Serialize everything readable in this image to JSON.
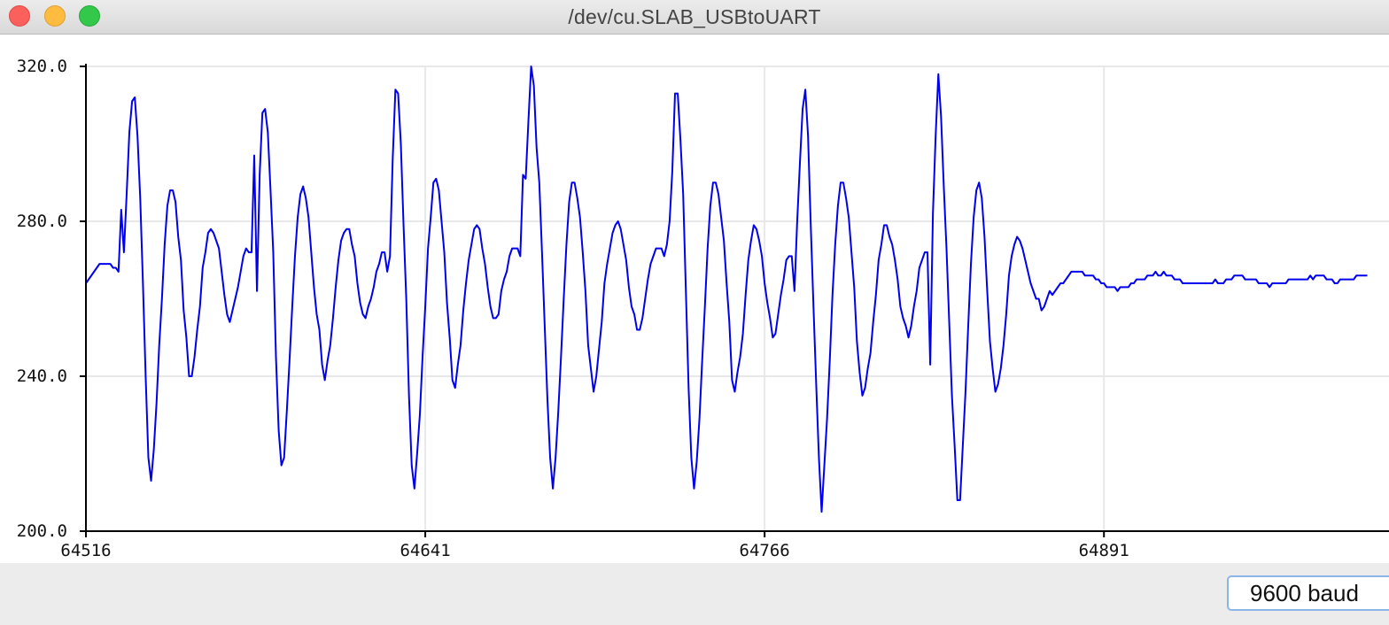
{
  "window": {
    "title": "/dev/cu.SLAB_USBtoUART"
  },
  "footer": {
    "baud_label": "9600 baud"
  },
  "colors": {
    "series": "#0000ee",
    "grid": "#e8e8e8",
    "axis": "#000000"
  },
  "chart_data": {
    "type": "line",
    "title": "",
    "xlabel": "",
    "ylabel": "",
    "xlim": [
      64516,
      64996
    ],
    "ylim": [
      200,
      320
    ],
    "x_ticks": [
      64516,
      64641,
      64766,
      64891
    ],
    "x_tick_labels": [
      "64516",
      "64641",
      "64766",
      "64891"
    ],
    "y_ticks": [
      200,
      240,
      280,
      320
    ],
    "y_tick_labels": [
      "200.0",
      "240.0",
      "280.0",
      "320.0"
    ],
    "grid": true,
    "series": [
      {
        "x_start": 64516,
        "x_step": 1,
        "values": [
          264,
          265,
          266,
          267,
          268,
          269,
          269,
          269,
          269,
          269,
          268,
          268,
          267,
          283,
          272,
          287,
          303,
          311,
          312,
          302,
          286,
          264,
          240,
          219,
          213,
          221,
          233,
          248,
          260,
          274,
          284,
          288,
          288,
          285,
          276,
          270,
          257,
          250,
          240,
          240,
          245,
          252,
          258,
          268,
          272,
          277,
          278,
          277,
          275,
          273,
          267,
          261,
          256,
          254,
          257,
          260,
          263,
          267,
          271,
          273,
          272,
          272,
          297,
          262,
          292,
          308,
          309,
          303,
          288,
          272,
          245,
          226,
          217,
          219,
          231,
          244,
          258,
          271,
          281,
          287,
          289,
          286,
          281,
          272,
          263,
          256,
          252,
          243,
          239,
          244,
          248,
          255,
          263,
          270,
          275,
          277,
          278,
          278,
          274,
          271,
          264,
          259,
          256,
          255,
          258,
          260,
          263,
          267,
          269,
          272,
          272,
          267,
          271,
          296,
          314,
          313,
          300,
          279,
          260,
          235,
          217,
          211,
          220,
          230,
          245,
          258,
          273,
          281,
          290,
          291,
          288,
          280,
          272,
          259,
          250,
          239,
          237,
          243,
          248,
          257,
          264,
          270,
          274,
          278,
          279,
          278,
          273,
          269,
          263,
          258,
          255,
          255,
          256,
          262,
          265,
          267,
          271,
          273,
          273,
          273,
          271,
          292,
          291,
          306,
          320,
          315,
          299,
          290,
          272,
          253,
          234,
          219,
          211,
          219,
          231,
          245,
          260,
          274,
          285,
          290,
          290,
          286,
          281,
          272,
          262,
          248,
          242,
          236,
          240,
          247,
          254,
          264,
          269,
          273,
          277,
          279,
          280,
          278,
          274,
          270,
          263,
          258,
          256,
          252,
          252,
          255,
          260,
          265,
          269,
          271,
          273,
          273,
          273,
          271,
          274,
          280,
          293,
          313,
          313,
          301,
          287,
          262,
          237,
          219,
          211,
          218,
          229,
          244,
          258,
          273,
          284,
          290,
          290,
          287,
          281,
          275,
          264,
          254,
          239,
          236,
          241,
          245,
          251,
          261,
          270,
          275,
          279,
          278,
          275,
          271,
          264,
          259,
          255,
          250,
          251,
          256,
          261,
          265,
          270,
          271,
          271,
          262,
          280,
          295,
          309,
          314,
          302,
          279,
          258,
          238,
          219,
          205,
          217,
          229,
          244,
          261,
          274,
          284,
          290,
          290,
          286,
          281,
          272,
          263,
          249,
          241,
          235,
          237,
          242,
          246,
          254,
          261,
          270,
          274,
          279,
          279,
          276,
          274,
          270,
          265,
          258,
          255,
          253,
          250,
          253,
          258,
          262,
          268,
          270,
          272,
          272,
          243,
          282,
          302,
          318,
          307,
          289,
          273,
          254,
          235,
          222,
          208,
          208,
          222,
          236,
          253,
          269,
          281,
          288,
          290,
          286,
          276,
          262,
          249,
          242,
          236,
          238,
          242,
          248,
          256,
          266,
          271,
          274,
          276,
          275,
          273,
          270,
          267,
          264,
          262,
          260,
          260,
          257,
          258,
          260,
          262,
          261,
          262,
          263,
          264,
          264,
          265,
          266,
          267,
          267,
          267,
          267,
          267,
          266,
          266,
          266,
          266,
          265,
          265,
          264,
          264,
          263,
          263,
          263,
          263,
          262,
          263,
          263,
          263,
          263,
          264,
          264,
          265,
          265,
          265,
          265,
          266,
          266,
          266,
          267,
          266,
          266,
          267,
          266,
          266,
          266,
          265,
          265,
          265,
          264,
          264,
          264,
          264,
          264,
          264,
          264,
          264,
          264,
          264,
          264,
          264,
          265,
          264,
          264,
          264,
          265,
          265,
          265,
          266,
          266,
          266,
          266,
          265,
          265,
          265,
          265,
          265,
          264,
          264,
          264,
          264,
          263,
          264,
          264,
          264,
          264,
          264,
          264,
          265,
          265,
          265,
          265,
          265,
          265,
          265,
          265,
          266,
          265,
          266,
          266,
          266,
          266,
          265,
          265,
          265,
          264,
          264,
          265,
          265,
          265,
          265,
          265,
          265,
          266,
          266,
          266,
          266,
          266
        ]
      }
    ]
  }
}
